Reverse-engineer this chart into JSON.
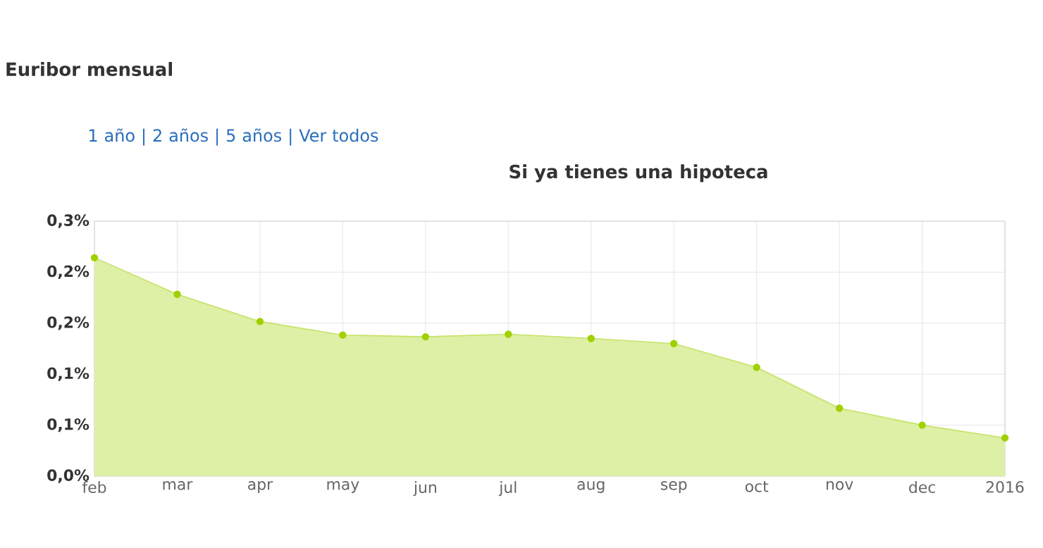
{
  "chart_data": {
    "type": "area",
    "title": "Euribor mensual",
    "subtitle": "Si ya tienes una hipoteca",
    "annotations": [
      "1 año | 2 años | 5 años | Ver todos"
    ],
    "categories": [
      "feb",
      "mar",
      "apr",
      "may",
      "jun",
      "jul",
      "aug",
      "sep",
      "oct",
      "nov",
      "dec",
      "2016"
    ],
    "values": [
      0.257,
      0.214,
      0.182,
      0.166,
      0.164,
      0.167,
      0.162,
      0.156,
      0.128,
      0.08,
      0.06,
      0.045
    ],
    "color": "#a0d000",
    "ylim": [
      0,
      0.3
    ],
    "yticks": [
      {
        "value": 0,
        "label": "0,0%"
      },
      {
        "value": 0.06,
        "label": "0,1%"
      },
      {
        "value": 0.12,
        "label": "0,1%"
      },
      {
        "value": 0.18,
        "label": "0,2%"
      },
      {
        "value": 0.24,
        "label": "0,2%"
      },
      {
        "value": 0.3,
        "label": "0,3%"
      }
    ],
    "grid": true,
    "marker": "circle"
  }
}
